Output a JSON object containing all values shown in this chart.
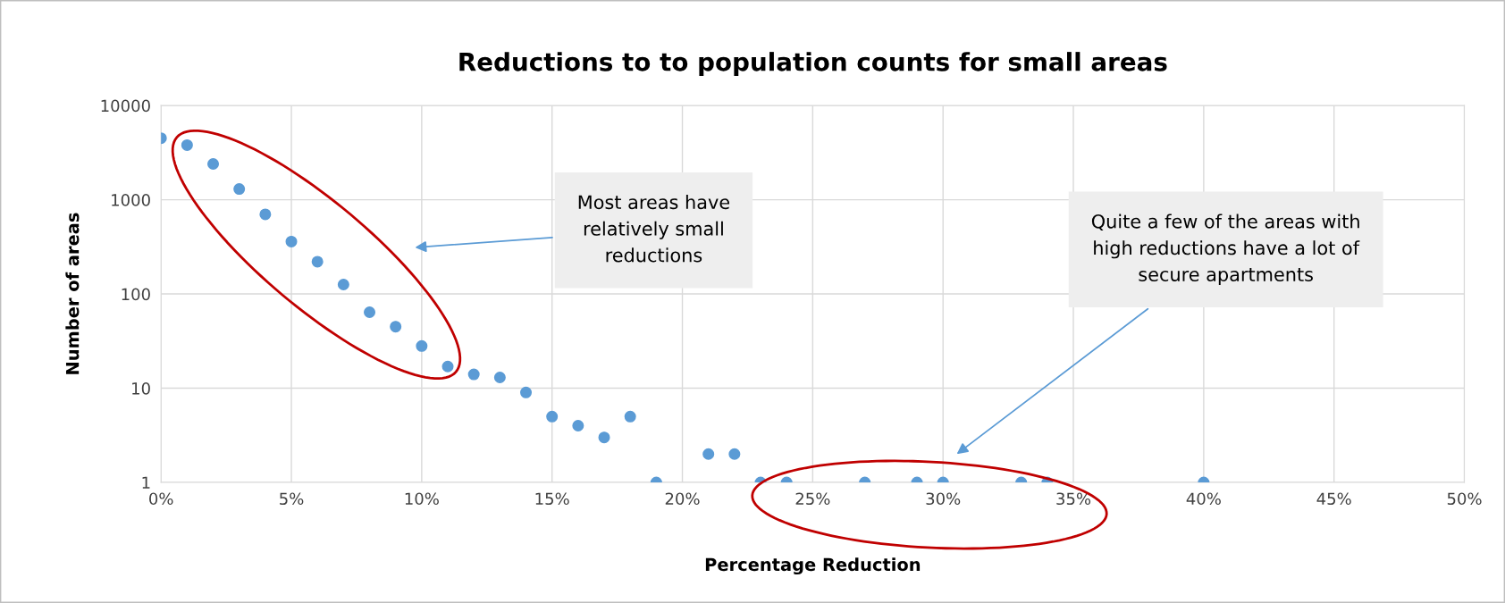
{
  "chart_data": {
    "type": "scatter",
    "title": "Reductions to to population counts for small areas",
    "xlabel": "Percentage Reduction",
    "ylabel": "Number of areas",
    "x": [
      0,
      1,
      2,
      3,
      4,
      5,
      6,
      7,
      8,
      9,
      10,
      11,
      12,
      13,
      14,
      15,
      16,
      17,
      18,
      19,
      21,
      22,
      23,
      24,
      27,
      29,
      30,
      33,
      34,
      40
    ],
    "series": [
      {
        "color": "#5b9bd5",
        "values": [
          4500,
          3800,
          2400,
          1300,
          700,
          360,
          220,
          126,
          64,
          45,
          28,
          17,
          14,
          13,
          9,
          5,
          4,
          3,
          5,
          1,
          2,
          2,
          1,
          1,
          1,
          1,
          1,
          1,
          1,
          1
        ]
      }
    ],
    "log": "y",
    "xlim": [
      0,
      50
    ],
    "ylim": [
      1,
      10000
    ],
    "xticks": [
      {
        "value": 0,
        "label": "0%"
      },
      {
        "value": 5,
        "label": "5%"
      },
      {
        "value": 10,
        "label": "10%"
      },
      {
        "value": 15,
        "label": "15%"
      },
      {
        "value": 20,
        "label": "20%"
      },
      {
        "value": 25,
        "label": "25%"
      },
      {
        "value": 30,
        "label": "30%"
      },
      {
        "value": 35,
        "label": "35%"
      },
      {
        "value": 40,
        "label": "40%"
      },
      {
        "value": 45,
        "label": "45%"
      },
      {
        "value": 50,
        "label": "50%"
      }
    ],
    "yticks": [
      1,
      10,
      100,
      1000,
      10000
    ],
    "grid": true,
    "marker": "circle",
    "annotations": [
      "Most areas have\nrelatively small\nreductions",
      "Quite a few of the areas with\nhigh reductions have a lot of\nsecure apartments"
    ]
  }
}
